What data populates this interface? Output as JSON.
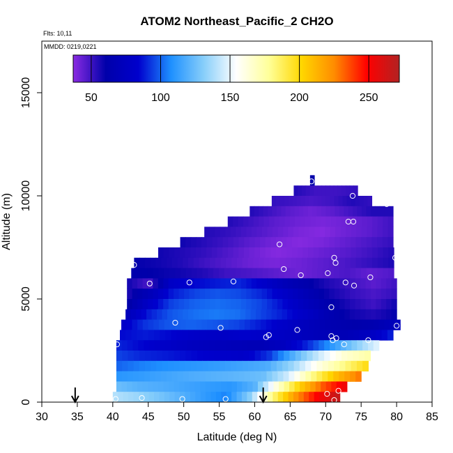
{
  "chart_data": {
    "type": "heatmap",
    "title": "ATOM2 Northeast_Pacific_2 CH2O",
    "flights_note": "Flts: 10,11",
    "date_note": "MMDD: 0219,0221",
    "xlabel": "Latitude (deg N)",
    "ylabel": "Altitude (m)",
    "xlim": [
      30,
      85
    ],
    "ylim": [
      0,
      17500
    ],
    "x_ticks": [
      "30",
      "35",
      "40",
      "45",
      "50",
      "55",
      "60",
      "65",
      "70",
      "75",
      "80",
      "85"
    ],
    "y_ticks": [
      "0",
      "5000",
      "10000",
      "15000"
    ],
    "colorbar": {
      "range": [
        37,
        272
      ],
      "ticks": [
        "50",
        "100",
        "150",
        "200",
        "250"
      ],
      "colors": [
        "#8a2be2",
        "#0000aa",
        "#0000cd",
        "#1e90ff",
        "#87cefa",
        "#ffffff",
        "#ffff99",
        "#ffd700",
        "#ff8c00",
        "#ff0000",
        "#b22222"
      ]
    },
    "arrows_at_latitude": [
      34.7,
      61.2
    ],
    "profile_rows": [
      {
        "alt": 10750,
        "lat_start": 67.8,
        "lat_end": 68.4,
        "values": [
          60
        ]
      },
      {
        "alt": 10250,
        "lat_start": 65.5,
        "lat_end": 74.5,
        "values": [
          55,
          50,
          50,
          52
        ]
      },
      {
        "alt": 9750,
        "lat_start": 62.4,
        "lat_end": 76.5,
        "values": [
          52,
          50,
          48,
          50,
          55,
          52
        ]
      },
      {
        "alt": 9250,
        "lat_start": 59.3,
        "lat_end": 79.5,
        "values": [
          55,
          50,
          45,
          42,
          45,
          50,
          55,
          55
        ]
      },
      {
        "alt": 8750,
        "lat_start": 56.2,
        "lat_end": 79.5,
        "values": [
          55,
          50,
          45,
          42,
          40,
          42,
          45,
          50
        ]
      },
      {
        "alt": 8250,
        "lat_start": 52.9,
        "lat_end": 79.5,
        "values": [
          55,
          52,
          48,
          44,
          40,
          38,
          42,
          45,
          50
        ]
      },
      {
        "alt": 7750,
        "lat_start": 49.5,
        "lat_end": 79.5,
        "values": [
          58,
          54,
          50,
          45,
          41,
          38,
          40,
          44,
          48,
          52
        ]
      },
      {
        "alt": 7250,
        "lat_start": 46.4,
        "lat_end": 79.6,
        "values": [
          58,
          55,
          52,
          47,
          42,
          38,
          40,
          43,
          46,
          50,
          55
        ]
      },
      {
        "alt": 6750,
        "lat_start": 43.0,
        "lat_end": 79.6,
        "values": [
          60,
          58,
          55,
          50,
          46,
          42,
          40,
          42,
          45,
          48,
          52,
          56
        ]
      },
      {
        "alt": 6250,
        "lat_start": 42.6,
        "lat_end": 79.6,
        "values": [
          62,
          60,
          58,
          55,
          50,
          48,
          45,
          42,
          45,
          48,
          44,
          47
        ]
      },
      {
        "alt": 5750,
        "lat_start": 42.0,
        "lat_end": 80.0,
        "values": [
          58,
          48,
          80,
          85,
          88,
          90,
          82,
          70,
          62,
          55,
          50,
          45,
          50
        ]
      },
      {
        "alt": 5250,
        "lat_start": 42.0,
        "lat_end": 80.0,
        "values": [
          55,
          70,
          88,
          95,
          98,
          96,
          90,
          80,
          68,
          58,
          52,
          48,
          52
        ]
      },
      {
        "alt": 4750,
        "lat_start": 42.0,
        "lat_end": 80.0,
        "values": [
          58,
          80,
          95,
          100,
          102,
          100,
          95,
          85,
          72,
          62,
          55,
          50,
          58
        ]
      },
      {
        "alt": 4250,
        "lat_start": 41.8,
        "lat_end": 80.0,
        "values": [
          70,
          88,
          98,
          102,
          104,
          102,
          95,
          88,
          78,
          66,
          58,
          55,
          60
        ]
      },
      {
        "alt": 3750,
        "lat_start": 41.2,
        "lat_end": 80.5,
        "values": [
          80,
          92,
          98,
          100,
          98,
          95,
          88,
          80,
          72,
          65,
          62,
          65,
          75
        ]
      },
      {
        "alt": 3250,
        "lat_start": 41.0,
        "lat_end": 79.5,
        "values": [
          85,
          88,
          85,
          80,
          78,
          82,
          80,
          75,
          70,
          68,
          75,
          90
        ]
      },
      {
        "alt": 2750,
        "lat_start": 40.5,
        "lat_end": 77.5,
        "values": [
          90,
          85,
          80,
          75,
          72,
          70,
          68,
          75,
          90,
          110,
          130,
          150
        ]
      },
      {
        "alt": 2250,
        "lat_start": 40.5,
        "lat_end": 76.3,
        "values": [
          95,
          90,
          88,
          85,
          82,
          80,
          92,
          120,
          145,
          165,
          175
        ]
      },
      {
        "alt": 1750,
        "lat_start": 40.5,
        "lat_end": 76.0,
        "values": [
          100,
          105,
          108,
          110,
          112,
          115,
          118,
          135,
          160,
          180,
          200
        ]
      },
      {
        "alt": 1250,
        "lat_start": 40.5,
        "lat_end": 75.0,
        "values": [
          110,
          112,
          115,
          118,
          120,
          122,
          125,
          145,
          180,
          210,
          230
        ]
      },
      {
        "alt": 750,
        "lat_start": 40.5,
        "lat_end": 73.0,
        "values": [
          125,
          120,
          118,
          115,
          112,
          110,
          120,
          165,
          205,
          235,
          255
        ]
      },
      {
        "alt": 250,
        "lat_start": 40.0,
        "lat_end": 72.0,
        "values": [
          140,
          135,
          128,
          120,
          112,
          105,
          130,
          180,
          220,
          250,
          268
        ]
      }
    ],
    "observation_points": [
      {
        "lat": 68.0,
        "alt": 10700
      },
      {
        "lat": 73.8,
        "alt": 10000
      },
      {
        "lat": 78.6,
        "alt": 9600
      },
      {
        "lat": 73.2,
        "alt": 8750
      },
      {
        "lat": 73.9,
        "alt": 8750
      },
      {
        "lat": 63.5,
        "alt": 7650
      },
      {
        "lat": 71.2,
        "alt": 7000
      },
      {
        "lat": 71.4,
        "alt": 6750
      },
      {
        "lat": 79.8,
        "alt": 7000
      },
      {
        "lat": 43.0,
        "alt": 6650
      },
      {
        "lat": 64.1,
        "alt": 6450
      },
      {
        "lat": 66.5,
        "alt": 6150
      },
      {
        "lat": 70.3,
        "alt": 6250
      },
      {
        "lat": 76.3,
        "alt": 6050
      },
      {
        "lat": 45.2,
        "alt": 5750
      },
      {
        "lat": 50.8,
        "alt": 5800
      },
      {
        "lat": 57.0,
        "alt": 5850
      },
      {
        "lat": 72.8,
        "alt": 5800
      },
      {
        "lat": 74.0,
        "alt": 5650
      },
      {
        "lat": 70.8,
        "alt": 4600
      },
      {
        "lat": 48.8,
        "alt": 3850
      },
      {
        "lat": 55.2,
        "alt": 3600
      },
      {
        "lat": 66.0,
        "alt": 3500
      },
      {
        "lat": 80.0,
        "alt": 3700
      },
      {
        "lat": 62.0,
        "alt": 3250
      },
      {
        "lat": 61.6,
        "alt": 3150
      },
      {
        "lat": 70.8,
        "alt": 3200
      },
      {
        "lat": 71.5,
        "alt": 3100
      },
      {
        "lat": 71.0,
        "alt": 3000
      },
      {
        "lat": 76.0,
        "alt": 3000
      },
      {
        "lat": 40.6,
        "alt": 2800
      },
      {
        "lat": 72.6,
        "alt": 2800
      },
      {
        "lat": 71.8,
        "alt": 550
      },
      {
        "lat": 70.2,
        "alt": 400
      },
      {
        "lat": 40.4,
        "alt": 150
      },
      {
        "lat": 44.1,
        "alt": 200
      },
      {
        "lat": 49.8,
        "alt": 150
      },
      {
        "lat": 55.9,
        "alt": 150
      },
      {
        "lat": 71.2,
        "alt": 100
      }
    ]
  }
}
